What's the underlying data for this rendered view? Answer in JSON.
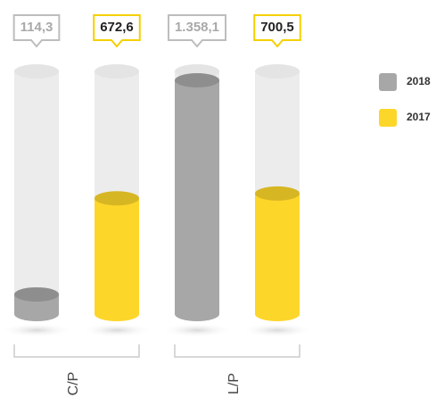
{
  "chart_data": {
    "type": "cylinder-bar",
    "categories": [
      "C/P",
      "L/P"
    ],
    "series": [
      {
        "name": "2018",
        "color": "#a7a7a7",
        "values": [
          114.3,
          1358.1
        ],
        "value_labels": [
          "114,3",
          "1.358,1"
        ]
      },
      {
        "name": "2017",
        "color": "#fdd62a",
        "values": [
          672.6,
          700.5
        ],
        "value_labels": [
          "672,6",
          "700,5"
        ]
      }
    ]
  }
}
